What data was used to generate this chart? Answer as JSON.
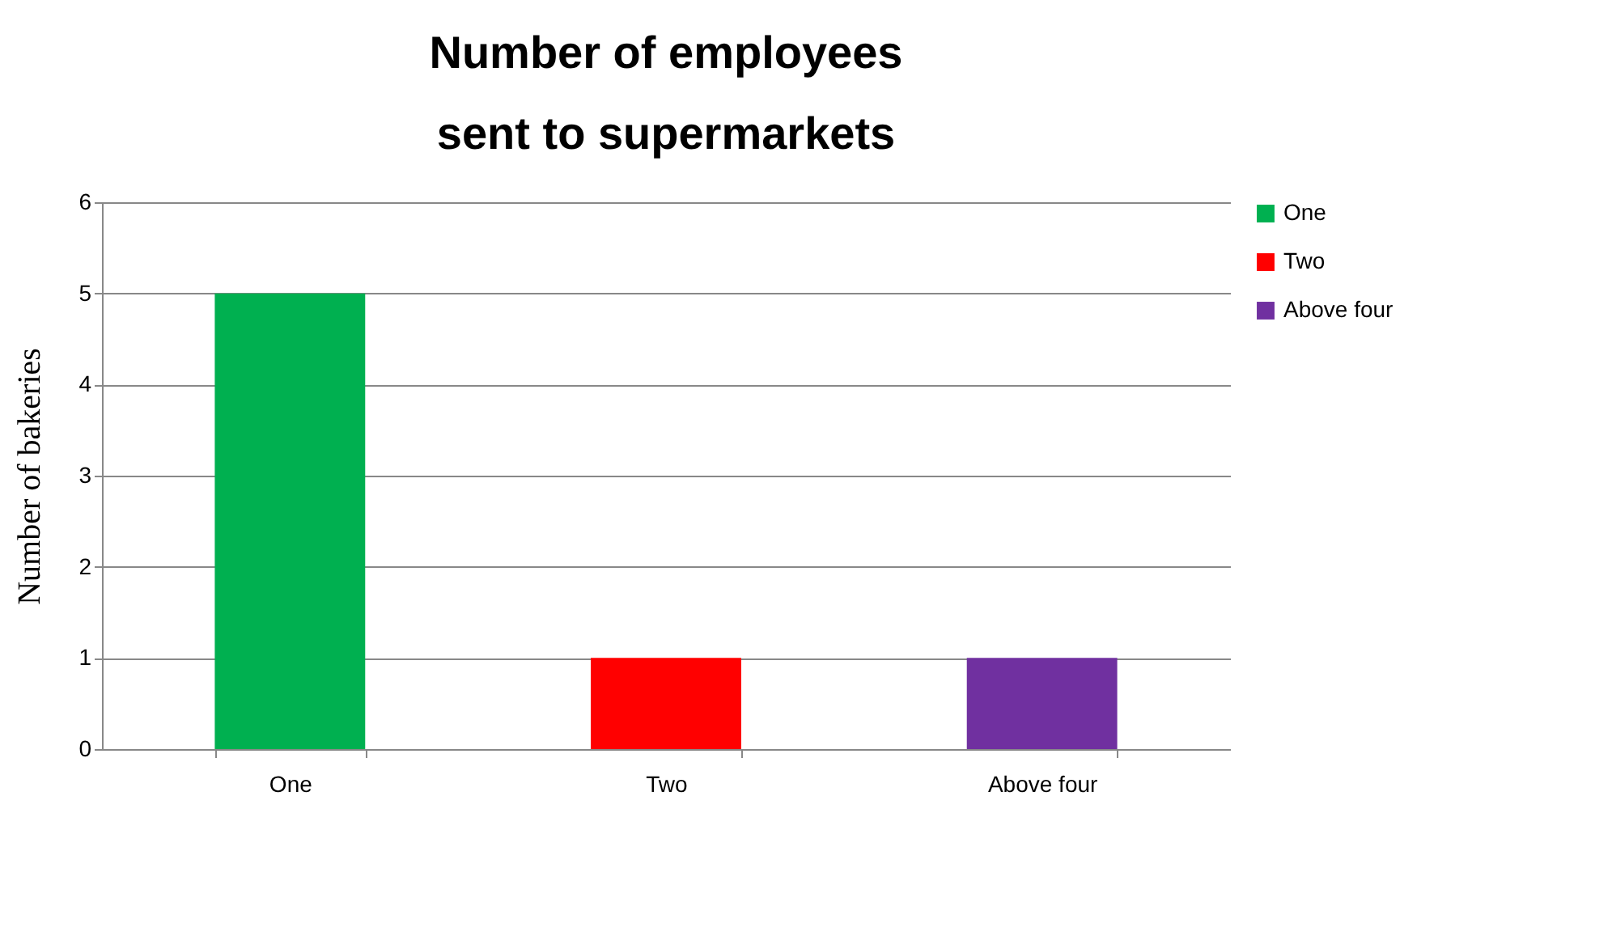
{
  "chart_data": {
    "type": "bar",
    "title": "Number of employees sent to supermarkets",
    "ylabel": "Number of bakeries",
    "categories": [
      "One",
      "Two",
      "Above four"
    ],
    "series": [
      {
        "name": "One",
        "color": "#00b050",
        "values": [
          5,
          null,
          null
        ]
      },
      {
        "name": "Two",
        "color": "#ff0000",
        "values": [
          null,
          1,
          null
        ]
      },
      {
        "name": "Above four",
        "color": "#7030a0",
        "values": [
          null,
          null,
          1
        ]
      }
    ],
    "ylim": [
      0,
      6
    ],
    "yticks": [
      0,
      1,
      2,
      3,
      4,
      5,
      6
    ],
    "grid": "y",
    "legend": "right"
  }
}
